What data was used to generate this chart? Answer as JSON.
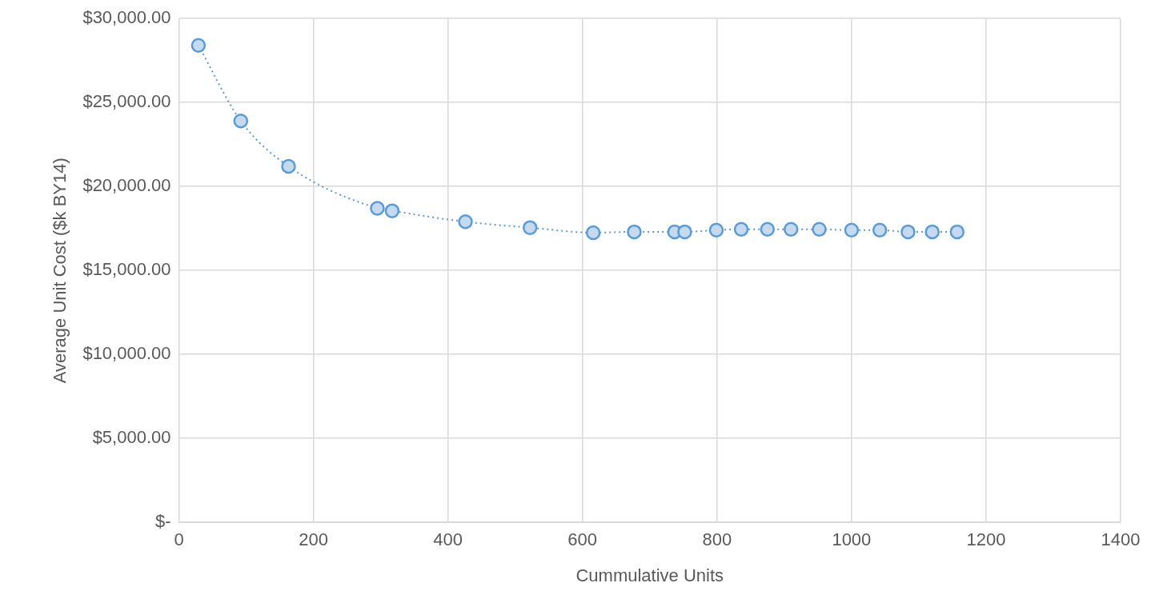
{
  "chart_data": {
    "type": "line",
    "xlabel": "Cummulative Units",
    "ylabel": "Average Unit Cost ($k BY14)",
    "x": [
      29,
      92,
      163,
      295,
      317,
      426,
      522,
      616,
      677,
      737,
      752,
      799,
      836,
      875,
      910,
      952,
      1000,
      1042,
      1084,
      1120,
      1157
    ],
    "series": [
      {
        "color": "#5b9bd5",
        "values": [
          28400,
          23900,
          21200,
          18700,
          18550,
          17900,
          17550,
          17250,
          17300,
          17300,
          17300,
          17400,
          17450,
          17450,
          17450,
          17450,
          17400,
          17400,
          17300,
          17300,
          17300
        ]
      }
    ],
    "xlim": [
      0,
      1400
    ],
    "xticks": [
      0,
      200,
      400,
      600,
      800,
      1000,
      1200,
      1400
    ],
    "ylim": [
      0,
      30000
    ],
    "yticks": [
      {
        "value": 0,
        "label": "$-"
      },
      {
        "value": 5000,
        "label": "$5,000.00"
      },
      {
        "value": 10000,
        "label": "$10,000.00"
      },
      {
        "value": 15000,
        "label": "$15,000.00"
      },
      {
        "value": 20000,
        "label": "$20,000.00"
      },
      {
        "value": 25000,
        "label": "$25,000.00"
      },
      {
        "value": 30000,
        "label": "$30,000.00"
      }
    ],
    "grid": true,
    "marker": "circle",
    "line_style": "dotted",
    "legend": false
  }
}
